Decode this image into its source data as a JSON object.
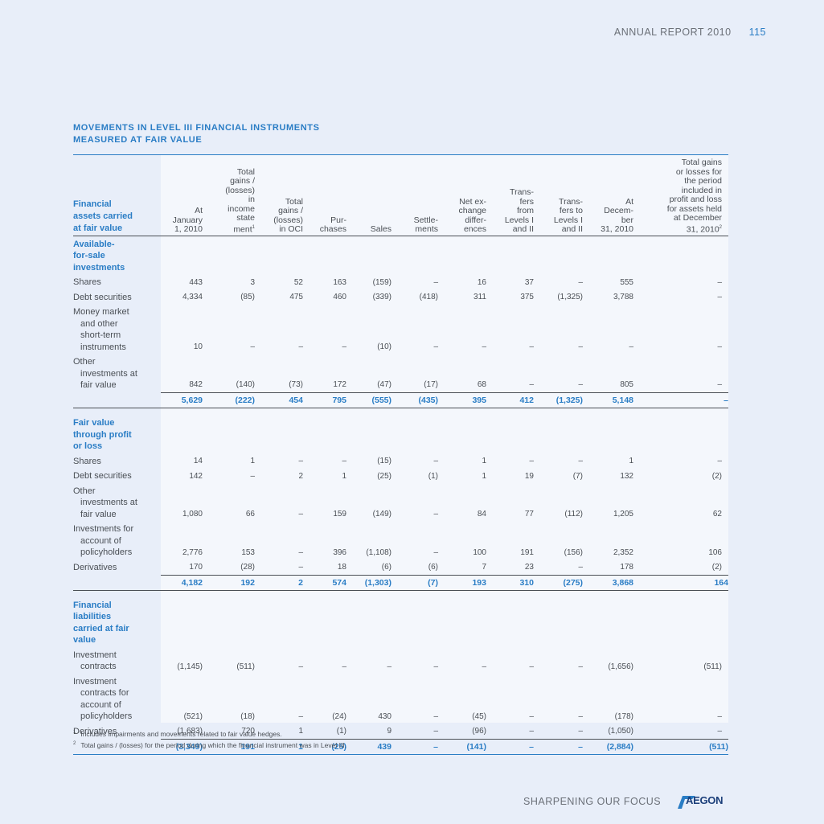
{
  "header": {
    "report": "ANNUAL REPORT 2010",
    "page": "115"
  },
  "title": [
    "MOVEMENTS IN LEVEL III FINANCIAL INSTRUMENTS",
    "MEASURED AT FAIR VALUE"
  ],
  "columns": [
    {
      "text": "Financial\nassets carried\nat fair value"
    },
    {
      "text": "At\nJanuary\n1, 2010"
    },
    {
      "text": "Total\ngains /\n(losses)\nin\nincome\nstate\nment",
      "fn": "1"
    },
    {
      "text": "Total\ngains /\n(losses)\nin OCI"
    },
    {
      "text": "Pur-\nchases"
    },
    {
      "text": "Sales"
    },
    {
      "text": "Settle-\nments"
    },
    {
      "text": "Net ex-\nchange\ndiffer-\nences"
    },
    {
      "text": "Trans-\nfers\nfrom\nLevels I\nand II"
    },
    {
      "text": "Trans-\nfers to\nLevels I\nand II"
    },
    {
      "text": "At\nDecem-\nber\n31, 2010"
    },
    {
      "text": "Total gains\nor losses for\nthe period\nincluded in\nprofit and loss\nfor assets held\nat December\n31, 2010",
      "fn": "2"
    }
  ],
  "sections": [
    {
      "title": "Available-\nfor-sale\ninvestments",
      "rows": [
        {
          "label": "Shares",
          "values": [
            "443",
            "3",
            "52",
            "163",
            "(159)",
            "–",
            "16",
            "37",
            "–",
            "555",
            "–"
          ]
        },
        {
          "label": "Debt securities",
          "values": [
            "4,334",
            "(85)",
            "475",
            "460",
            "(339)",
            "(418)",
            "311",
            "375",
            "(1,325)",
            "3,788",
            "–"
          ]
        },
        {
          "label": "Money market\nand other\nshort-term\ninstruments",
          "values": [
            "10",
            "–",
            "–",
            "–",
            "(10)",
            "–",
            "–",
            "–",
            "–",
            "–",
            "–"
          ]
        },
        {
          "label": "Other\ninvestments at\nfair value",
          "values": [
            "842",
            "(140)",
            "(73)",
            "172",
            "(47)",
            "(17)",
            "68",
            "–",
            "–",
            "805",
            "–"
          ]
        }
      ],
      "total": [
        "5,629",
        "(222)",
        "454",
        "795",
        "(555)",
        "(435)",
        "395",
        "412",
        "(1,325)",
        "5,148",
        "–"
      ]
    },
    {
      "title": "Fair value\nthrough profit\nor loss",
      "rows": [
        {
          "label": "Shares",
          "values": [
            "14",
            "1",
            "–",
            "–",
            "(15)",
            "–",
            "1",
            "–",
            "–",
            "1",
            "–"
          ]
        },
        {
          "label": "Debt securities",
          "values": [
            "142",
            "–",
            "2",
            "1",
            "(25)",
            "(1)",
            "1",
            "19",
            "(7)",
            "132",
            "(2)"
          ]
        },
        {
          "label": "Other\ninvestments at\nfair value",
          "values": [
            "1,080",
            "66",
            "–",
            "159",
            "(149)",
            "–",
            "84",
            "77",
            "(112)",
            "1,205",
            "62"
          ]
        },
        {
          "label": "Investments for\naccount of\npolicyholders",
          "values": [
            "2,776",
            "153",
            "–",
            "396",
            "(1,108)",
            "–",
            "100",
            "191",
            "(156)",
            "2,352",
            "106"
          ]
        },
        {
          "label": "Derivatives",
          "values": [
            "170",
            "(28)",
            "–",
            "18",
            "(6)",
            "(6)",
            "7",
            "23",
            "–",
            "178",
            "(2)"
          ]
        }
      ],
      "total": [
        "4,182",
        "192",
        "2",
        "574",
        "(1,303)",
        "(7)",
        "193",
        "310",
        "(275)",
        "3,868",
        "164"
      ]
    },
    {
      "title": "Financial\nliabilities\ncarried at fair\nvalue",
      "rows": [
        {
          "label": "Investment\ncontracts",
          "values": [
            "(1,145)",
            "(511)",
            "–",
            "–",
            "–",
            "–",
            "–",
            "–",
            "–",
            "(1,656)",
            "(511)"
          ]
        },
        {
          "label": "Investment\ncontracts for\naccount of\npolicyholders",
          "values": [
            "(521)",
            "(18)",
            "–",
            "(24)",
            "430",
            "–",
            "(45)",
            "–",
            "–",
            "(178)",
            "–"
          ]
        },
        {
          "label": "Derivatives",
          "values": [
            "(1,683)",
            "720",
            "1",
            "(1)",
            "9",
            "–",
            "(96)",
            "–",
            "–",
            "(1,050)",
            "–"
          ]
        }
      ],
      "total": [
        "(3,349)",
        "191",
        "1",
        "(25)",
        "439",
        "–",
        "(141)",
        "–",
        "–",
        "(2,884)",
        "(511)"
      ]
    }
  ],
  "footnotes": [
    {
      "num": "1",
      "text": "Includes impairments and movements related to fair value hedges."
    },
    {
      "num": "2",
      "text": "Total gains / (losses) for the period during which the financial instrument was in Level III."
    }
  ],
  "footer": {
    "text": "SHARPENING OUR FOCUS",
    "logo": "AEGON",
    "logo_color": "#1c3f7a"
  },
  "colors": {
    "accent": "#2a7dc5",
    "background": "#e8eef9",
    "text": "#4a4f55"
  }
}
